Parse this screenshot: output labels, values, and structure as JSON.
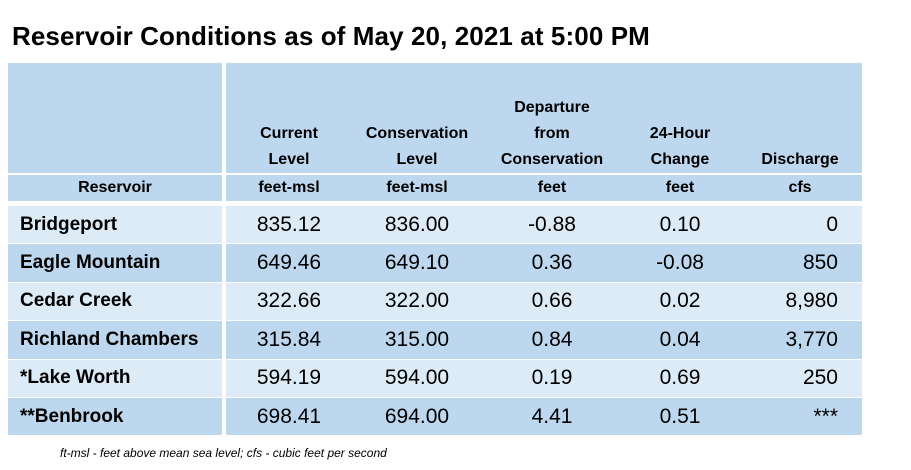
{
  "title": "Reservoir Conditions as of May 20, 2021 at 5:00 PM",
  "headers": {
    "reservoir": "Reservoir",
    "current": [
      "Current",
      "Level"
    ],
    "conservation": [
      "Conservation",
      "Level"
    ],
    "departure": [
      "Departure",
      "from",
      "Conservation"
    ],
    "change": [
      "24-Hour",
      "Change"
    ],
    "discharge": "Discharge"
  },
  "units": {
    "current": "feet-msl",
    "conservation": "feet-msl",
    "departure": "feet",
    "change": "feet",
    "discharge": "cfs"
  },
  "rows": [
    {
      "name": "Bridgeport",
      "current": "835.12",
      "conservation": "836.00",
      "departure": "-0.88",
      "change": "0.10",
      "discharge": "0"
    },
    {
      "name": "Eagle Mountain",
      "current": "649.46",
      "conservation": "649.10",
      "departure": "0.36",
      "change": "-0.08",
      "discharge": "850"
    },
    {
      "name": "Cedar Creek",
      "current": "322.66",
      "conservation": "322.00",
      "departure": "0.66",
      "change": "0.02",
      "discharge": "8,980"
    },
    {
      "name": "Richland Chambers",
      "current": "315.84",
      "conservation": "315.00",
      "departure": "0.84",
      "change": "0.04",
      "discharge": "3,770"
    },
    {
      "name": "*Lake Worth",
      "current": "594.19",
      "conservation": "594.00",
      "departure": "0.19",
      "change": "0.69",
      "discharge": "250"
    },
    {
      "name": "**Benbrook",
      "current": "698.41",
      "conservation": "694.00",
      "departure": "4.41",
      "change": "0.51",
      "discharge": "***"
    }
  ],
  "footnote": "ft-msl - feet above mean sea level; cfs - cubic feet per second",
  "colors": {
    "header_bg": "#bdd7ee",
    "row_light": "#ddebf7",
    "row_dark": "#bdd7ee"
  }
}
